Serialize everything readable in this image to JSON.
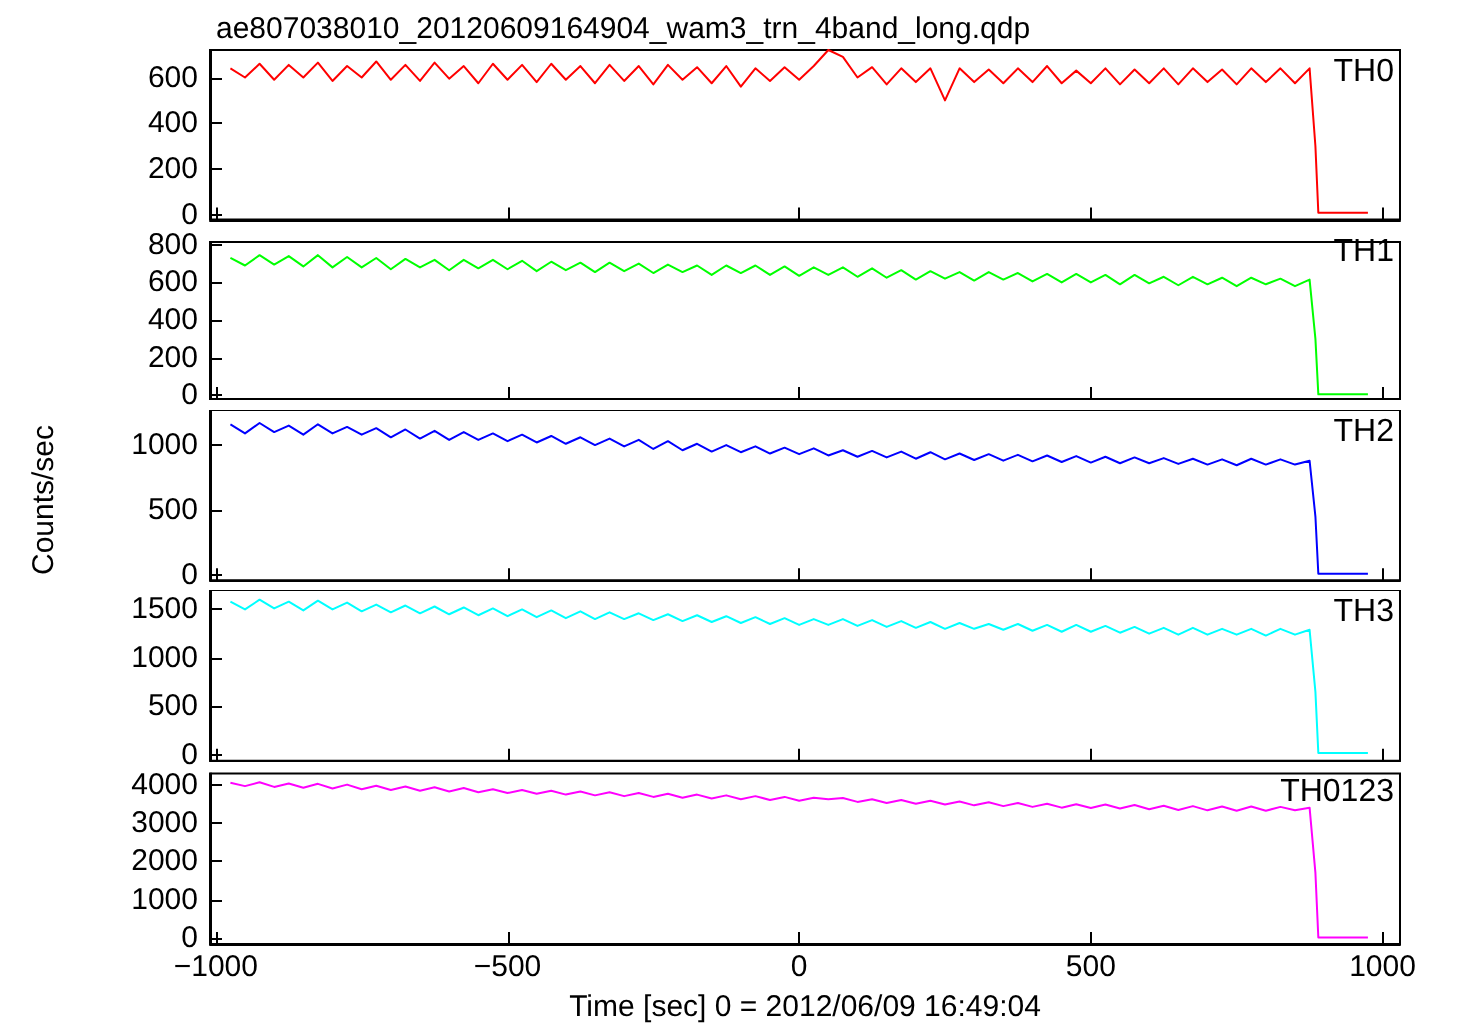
{
  "chart_data": [
    {
      "type": "line",
      "title": "ae807038010_20120609164904_wam3_trn_4band_long.qdp",
      "annotations": [
        "TH0"
      ],
      "tick_labels": "y",
      "x": [
        -975,
        -950,
        -925,
        -900,
        -875,
        -850,
        -825,
        -800,
        -775,
        -750,
        -725,
        -700,
        -675,
        -650,
        -625,
        -600,
        -575,
        -550,
        -525,
        -500,
        -475,
        -450,
        -425,
        -400,
        -375,
        -350,
        -325,
        -300,
        -275,
        -250,
        -225,
        -200,
        -175,
        -150,
        -125,
        -100,
        -75,
        -50,
        -25,
        0,
        25,
        50,
        75,
        100,
        125,
        150,
        175,
        200,
        225,
        250,
        275,
        300,
        325,
        350,
        375,
        400,
        425,
        450,
        475,
        500,
        525,
        550,
        575,
        600,
        625,
        650,
        675,
        700,
        725,
        750,
        775,
        800,
        825,
        850,
        875,
        885,
        890,
        975
      ],
      "xlim": [
        -1010,
        1030
      ],
      "xticks": [
        -1000,
        -500,
        0,
        500,
        1000
      ],
      "ylim": [
        -20,
        720
      ],
      "yticks": [
        0,
        200,
        400,
        600
      ],
      "series": [
        {
          "color": "#ff0000",
          "values": [
            640,
            600,
            660,
            590,
            655,
            600,
            665,
            585,
            650,
            600,
            670,
            590,
            655,
            585,
            665,
            595,
            650,
            575,
            660,
            590,
            655,
            580,
            660,
            590,
            650,
            575,
            655,
            585,
            650,
            570,
            655,
            590,
            645,
            575,
            650,
            560,
            640,
            585,
            645,
            590,
            650,
            720,
            690,
            600,
            645,
            570,
            640,
            580,
            640,
            500,
            640,
            580,
            635,
            575,
            640,
            580,
            650,
            575,
            630,
            575,
            640,
            570,
            635,
            575,
            640,
            570,
            640,
            580,
            635,
            570,
            640,
            580,
            640,
            575,
            640,
            300,
            10,
            10
          ]
        }
      ]
    },
    {
      "type": "line",
      "annotations": [
        "TH1"
      ],
      "tick_labels": "y",
      "x": [
        -975,
        -950,
        -925,
        -900,
        -875,
        -850,
        -825,
        -800,
        -775,
        -750,
        -725,
        -700,
        -675,
        -650,
        -625,
        -600,
        -575,
        -550,
        -525,
        -500,
        -475,
        -450,
        -425,
        -400,
        -375,
        -350,
        -325,
        -300,
        -275,
        -250,
        -225,
        -200,
        -175,
        -150,
        -125,
        -100,
        -75,
        -50,
        -25,
        0,
        25,
        50,
        75,
        100,
        125,
        150,
        175,
        200,
        225,
        250,
        275,
        300,
        325,
        350,
        375,
        400,
        425,
        450,
        475,
        500,
        525,
        550,
        575,
        600,
        625,
        650,
        675,
        700,
        725,
        750,
        775,
        800,
        825,
        850,
        875,
        885,
        890,
        975
      ],
      "xlim": [
        -1010,
        1030
      ],
      "xticks": [
        -1000,
        -500,
        0,
        500,
        1000
      ],
      "ylim": [
        -20,
        815
      ],
      "yticks": [
        0,
        200,
        400,
        600,
        800
      ],
      "series": [
        {
          "color": "#00ff00",
          "values": [
            730,
            690,
            745,
            695,
            740,
            685,
            745,
            680,
            735,
            680,
            730,
            670,
            725,
            680,
            720,
            665,
            720,
            675,
            720,
            670,
            715,
            660,
            710,
            665,
            705,
            655,
            705,
            660,
            700,
            650,
            695,
            655,
            690,
            640,
            690,
            650,
            690,
            640,
            685,
            635,
            680,
            640,
            680,
            630,
            675,
            625,
            665,
            615,
            660,
            620,
            655,
            610,
            655,
            615,
            650,
            605,
            645,
            600,
            645,
            600,
            640,
            590,
            640,
            595,
            630,
            585,
            630,
            590,
            625,
            580,
            625,
            590,
            620,
            580,
            615,
            300,
            5,
            5
          ]
        }
      ]
    },
    {
      "type": "line",
      "annotations": [
        "TH2"
      ],
      "tick_labels": "y",
      "ylabel": "Counts/sec",
      "x": [
        -975,
        -950,
        -925,
        -900,
        -875,
        -850,
        -825,
        -800,
        -775,
        -750,
        -725,
        -700,
        -675,
        -650,
        -625,
        -600,
        -575,
        -550,
        -525,
        -500,
        -475,
        -450,
        -425,
        -400,
        -375,
        -350,
        -325,
        -300,
        -275,
        -250,
        -225,
        -200,
        -175,
        -150,
        -125,
        -100,
        -75,
        -50,
        -25,
        0,
        25,
        50,
        75,
        100,
        125,
        150,
        175,
        200,
        225,
        250,
        275,
        300,
        325,
        350,
        375,
        400,
        425,
        450,
        475,
        500,
        525,
        550,
        575,
        600,
        625,
        650,
        675,
        700,
        725,
        750,
        775,
        800,
        825,
        850,
        875,
        885,
        890,
        975
      ],
      "xlim": [
        -1010,
        1030
      ],
      "xticks": [
        -1000,
        -500,
        0,
        500,
        1000
      ],
      "ylim": [
        -40,
        1270
      ],
      "yticks": [
        0,
        500,
        1000
      ],
      "series": [
        {
          "color": "#0000ff",
          "values": [
            1160,
            1090,
            1170,
            1100,
            1150,
            1080,
            1160,
            1090,
            1140,
            1080,
            1130,
            1060,
            1120,
            1050,
            1110,
            1040,
            1100,
            1040,
            1090,
            1030,
            1080,
            1020,
            1070,
            1010,
            1060,
            1000,
            1050,
            990,
            1040,
            970,
            1030,
            960,
            1010,
            950,
            1000,
            945,
            990,
            935,
            980,
            930,
            975,
            920,
            960,
            910,
            955,
            905,
            950,
            895,
            945,
            890,
            935,
            885,
            930,
            880,
            925,
            875,
            920,
            870,
            915,
            865,
            910,
            860,
            905,
            860,
            900,
            855,
            895,
            850,
            890,
            845,
            895,
            850,
            890,
            850,
            880,
            450,
            10,
            10
          ]
        }
      ]
    },
    {
      "type": "line",
      "annotations": [
        "TH3"
      ],
      "tick_labels": "y",
      "x": [
        -975,
        -950,
        -925,
        -900,
        -875,
        -850,
        -825,
        -800,
        -775,
        -750,
        -725,
        -700,
        -675,
        -650,
        -625,
        -600,
        -575,
        -550,
        -525,
        -500,
        -475,
        -450,
        -425,
        -400,
        -375,
        -350,
        -325,
        -300,
        -275,
        -250,
        -225,
        -200,
        -175,
        -150,
        -125,
        -100,
        -75,
        -50,
        -25,
        0,
        25,
        50,
        75,
        100,
        125,
        150,
        175,
        200,
        225,
        250,
        275,
        300,
        325,
        350,
        375,
        400,
        425,
        450,
        475,
        500,
        525,
        550,
        575,
        600,
        625,
        650,
        675,
        700,
        725,
        750,
        775,
        800,
        825,
        850,
        875,
        885,
        890,
        975
      ],
      "xlim": [
        -1010,
        1030
      ],
      "xticks": [
        -1000,
        -500,
        0,
        500,
        1000
      ],
      "ylim": [
        -60,
        1700
      ],
      "yticks": [
        0,
        500,
        1000,
        1500
      ],
      "series": [
        {
          "color": "#00ffff",
          "values": [
            1580,
            1500,
            1600,
            1510,
            1580,
            1490,
            1590,
            1500,
            1570,
            1480,
            1550,
            1470,
            1540,
            1460,
            1530,
            1450,
            1520,
            1440,
            1510,
            1430,
            1500,
            1420,
            1490,
            1410,
            1480,
            1400,
            1470,
            1400,
            1460,
            1390,
            1450,
            1380,
            1440,
            1370,
            1430,
            1360,
            1420,
            1350,
            1410,
            1340,
            1400,
            1340,
            1400,
            1330,
            1390,
            1320,
            1380,
            1310,
            1370,
            1300,
            1360,
            1300,
            1350,
            1290,
            1350,
            1280,
            1340,
            1270,
            1340,
            1270,
            1330,
            1260,
            1320,
            1250,
            1310,
            1240,
            1310,
            1240,
            1300,
            1240,
            1300,
            1230,
            1300,
            1240,
            1290,
            650,
            20,
            20
          ]
        }
      ]
    },
    {
      "type": "line",
      "annotations": [
        "TH0123"
      ],
      "xlabel": "Time [sec] 0 = 2012/06/09 16:49:04",
      "x": [
        -975,
        -950,
        -925,
        -900,
        -875,
        -850,
        -825,
        -800,
        -775,
        -750,
        -725,
        -700,
        -675,
        -650,
        -625,
        -600,
        -575,
        -550,
        -525,
        -500,
        -475,
        -450,
        -425,
        -400,
        -375,
        -350,
        -325,
        -300,
        -275,
        -250,
        -225,
        -200,
        -175,
        -150,
        -125,
        -100,
        -75,
        -50,
        -25,
        0,
        25,
        50,
        75,
        100,
        125,
        150,
        175,
        200,
        225,
        250,
        275,
        300,
        325,
        350,
        375,
        400,
        425,
        450,
        475,
        500,
        525,
        550,
        575,
        600,
        625,
        650,
        675,
        700,
        725,
        750,
        775,
        800,
        825,
        850,
        875,
        885,
        890,
        975
      ],
      "xlim": [
        -1010,
        1030
      ],
      "xticks": [
        -1000,
        -500,
        0,
        500,
        1000
      ],
      "ylim": [
        -150,
        4290
      ],
      "yticks": [
        0,
        1000,
        2000,
        3000,
        4000
      ],
      "series": [
        {
          "color": "#ff00ff",
          "values": [
            4050,
            3960,
            4060,
            3940,
            4030,
            3920,
            4020,
            3900,
            4000,
            3880,
            3970,
            3860,
            3950,
            3840,
            3930,
            3820,
            3910,
            3800,
            3880,
            3780,
            3860,
            3760,
            3840,
            3740,
            3820,
            3720,
            3800,
            3700,
            3780,
            3680,
            3760,
            3660,
            3740,
            3640,
            3720,
            3620,
            3700,
            3600,
            3680,
            3580,
            3660,
            3620,
            3650,
            3550,
            3620,
            3520,
            3600,
            3500,
            3580,
            3480,
            3560,
            3460,
            3540,
            3440,
            3520,
            3420,
            3500,
            3400,
            3490,
            3390,
            3480,
            3380,
            3470,
            3360,
            3450,
            3340,
            3440,
            3330,
            3430,
            3320,
            3430,
            3320,
            3420,
            3330,
            3400,
            1700,
            20,
            20
          ]
        }
      ]
    }
  ]
}
